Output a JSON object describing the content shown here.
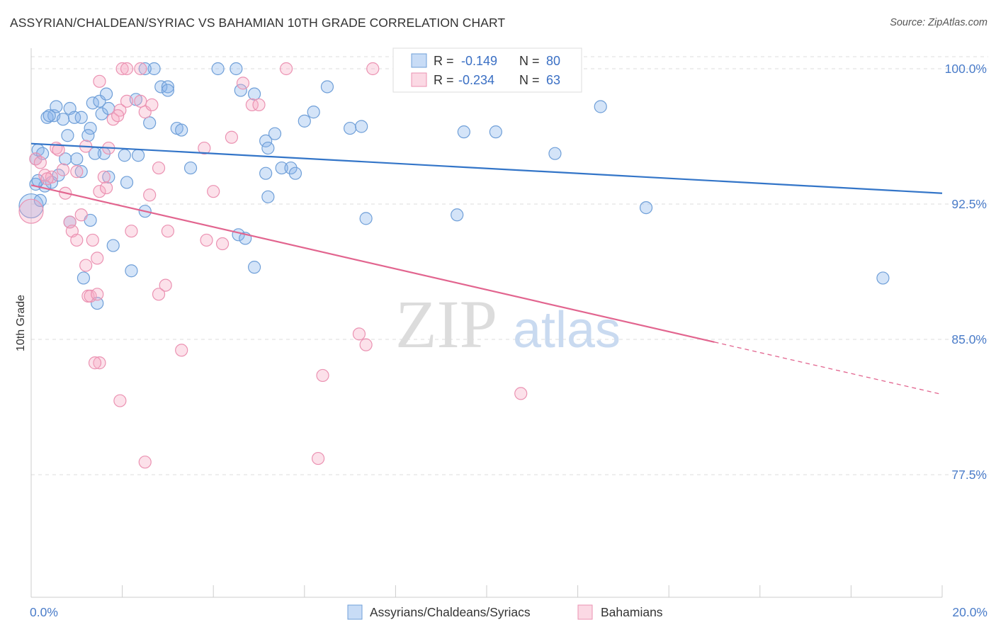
{
  "title": "ASSYRIAN/CHALDEAN/SYRIAC VS BAHAMIAN 10TH GRADE CORRELATION CHART",
  "source": "Source: ZipAtlas.com",
  "watermark": {
    "zip": "ZIP",
    "atlas": "atlas"
  },
  "colors": {
    "blue_fill": "rgba(133,178,236,0.35)",
    "blue_stroke": "#6f9fd8",
    "blue_line": "#3375c8",
    "pink_fill": "rgba(246,170,196,0.35)",
    "pink_stroke": "#eb92b2",
    "pink_line": "#e2658f",
    "tick_label": "#4a7cc9",
    "grid": "#dddddd"
  },
  "legend": {
    "rows": [
      {
        "r_label": "R =",
        "r_value": "-0.149",
        "n_label": "N =",
        "n_value": "80"
      },
      {
        "r_label": "R =",
        "r_value": "-0.234",
        "n_label": "N =",
        "n_value": "63"
      }
    ]
  },
  "bottom_legend": [
    "Assyrians/Chaldeans/Syriacs",
    "Bahamians"
  ],
  "chart_data": {
    "type": "scatter",
    "ylabel": "10th Grade",
    "xlim": [
      0,
      20
    ],
    "ylim": [
      70,
      101.2
    ],
    "x_ticks": [
      {
        "value": 0,
        "label": "0.0%"
      },
      {
        "value": 20,
        "label": "20.0%"
      }
    ],
    "y_ticks": [
      {
        "value": 100,
        "label": "100.0%"
      },
      {
        "value": 92.5,
        "label": "92.5%"
      },
      {
        "value": 85,
        "label": "85.0%"
      },
      {
        "value": 77.5,
        "label": "77.5%"
      }
    ],
    "grid": "horizontal dashed",
    "series": [
      {
        "name": "Assyrians/Chaldeans/Syriacs",
        "color": "blue",
        "trend": {
          "x0": 0,
          "y0": 95.85,
          "x1": 20,
          "y1": 93.1
        },
        "points": [
          [
            0.0,
            92.4
          ],
          [
            0.1,
            93.6
          ],
          [
            0.2,
            92.7
          ],
          [
            0.15,
            95.5
          ],
          [
            0.1,
            95.0
          ],
          [
            0.25,
            95.3
          ],
          [
            0.35,
            97.3
          ],
          [
            0.5,
            97.4
          ],
          [
            0.4,
            97.4
          ],
          [
            0.55,
            97.9
          ],
          [
            0.7,
            97.2
          ],
          [
            0.8,
            96.3
          ],
          [
            0.85,
            97.8
          ],
          [
            0.95,
            97.3
          ],
          [
            1.1,
            97.3
          ],
          [
            1.3,
            96.7
          ],
          [
            1.35,
            98.1
          ],
          [
            1.5,
            98.2
          ],
          [
            1.55,
            97.5
          ],
          [
            1.65,
            98.6
          ],
          [
            1.7,
            97.8
          ],
          [
            1.6,
            95.3
          ],
          [
            1.4,
            95.3
          ],
          [
            1.25,
            96.3
          ],
          [
            1.0,
            95.0
          ],
          [
            0.75,
            95.0
          ],
          [
            0.6,
            94.1
          ],
          [
            0.45,
            93.7
          ],
          [
            0.3,
            93.5
          ],
          [
            0.15,
            93.8
          ],
          [
            1.1,
            94.3
          ],
          [
            1.7,
            94.0
          ],
          [
            2.1,
            93.7
          ],
          [
            2.5,
            92.1
          ],
          [
            2.3,
            98.3
          ],
          [
            2.6,
            97.0
          ],
          [
            2.85,
            99.0
          ],
          [
            3.0,
            99.0
          ],
          [
            3.2,
            96.7
          ],
          [
            3.3,
            96.6
          ],
          [
            3.0,
            98.8
          ],
          [
            2.7,
            100.0
          ],
          [
            2.5,
            100.0
          ],
          [
            4.1,
            100.0
          ],
          [
            4.5,
            100.0
          ],
          [
            4.6,
            98.8
          ],
          [
            4.9,
            98.6
          ],
          [
            5.15,
            96.0
          ],
          [
            5.35,
            96.4
          ],
          [
            5.2,
            95.6
          ],
          [
            5.5,
            94.5
          ],
          [
            5.7,
            94.5
          ],
          [
            5.8,
            94.2
          ],
          [
            5.15,
            94.2
          ],
          [
            4.55,
            90.8
          ],
          [
            4.7,
            90.6
          ],
          [
            4.9,
            89.0
          ],
          [
            5.2,
            92.9
          ],
          [
            6.2,
            97.6
          ],
          [
            6.5,
            99.0
          ],
          [
            6.0,
            97.1
          ],
          [
            7.0,
            96.7
          ],
          [
            7.25,
            96.8
          ],
          [
            9.5,
            96.5
          ],
          [
            10.2,
            96.5
          ],
          [
            9.35,
            91.9
          ],
          [
            7.35,
            91.7
          ],
          [
            11.5,
            95.3
          ],
          [
            12.5,
            97.9
          ],
          [
            13.5,
            92.3
          ],
          [
            18.7,
            88.4
          ],
          [
            1.8,
            90.2
          ],
          [
            2.2,
            88.8
          ],
          [
            1.45,
            87.0
          ],
          [
            1.15,
            88.4
          ],
          [
            1.3,
            91.6
          ],
          [
            0.85,
            91.5
          ],
          [
            2.05,
            95.2
          ],
          [
            2.35,
            95.2
          ],
          [
            3.5,
            94.5
          ]
        ]
      },
      {
        "name": "Bahamians",
        "color": "pink",
        "trend": {
          "x0": 0,
          "y0": 93.55,
          "x1": 15,
          "y1": 84.85,
          "x2": 20,
          "y2": 81.95
        },
        "points": [
          [
            0.0,
            92.1
          ],
          [
            0.1,
            95.0
          ],
          [
            0.2,
            94.8
          ],
          [
            0.3,
            94.1
          ],
          [
            0.45,
            94.0
          ],
          [
            0.55,
            95.6
          ],
          [
            0.7,
            94.4
          ],
          [
            0.75,
            93.1
          ],
          [
            0.85,
            91.5
          ],
          [
            0.9,
            91.0
          ],
          [
            1.0,
            90.5
          ],
          [
            1.1,
            91.9
          ],
          [
            1.2,
            89.1
          ],
          [
            1.35,
            90.5
          ],
          [
            1.45,
            89.5
          ],
          [
            1.5,
            93.2
          ],
          [
            1.6,
            94.0
          ],
          [
            1.7,
            95.6
          ],
          [
            1.8,
            97.2
          ],
          [
            1.95,
            97.7
          ],
          [
            2.1,
            98.2
          ],
          [
            2.0,
            100.0
          ],
          [
            2.1,
            100.0
          ],
          [
            2.4,
            100.0
          ],
          [
            2.4,
            98.2
          ],
          [
            2.5,
            97.6
          ],
          [
            2.65,
            98.0
          ],
          [
            2.8,
            94.5
          ],
          [
            2.95,
            88.0
          ],
          [
            2.8,
            87.5
          ],
          [
            3.0,
            91.0
          ],
          [
            3.3,
            84.4
          ],
          [
            3.8,
            95.6
          ],
          [
            4.0,
            93.2
          ],
          [
            3.85,
            90.5
          ],
          [
            4.2,
            90.3
          ],
          [
            4.4,
            96.2
          ],
          [
            4.65,
            99.2
          ],
          [
            4.85,
            98.0
          ],
          [
            5.0,
            98.0
          ],
          [
            5.6,
            100.0
          ],
          [
            7.5,
            100.0
          ],
          [
            1.25,
            87.4
          ],
          [
            1.3,
            87.4
          ],
          [
            1.45,
            87.5
          ],
          [
            1.5,
            83.7
          ],
          [
            1.4,
            83.7
          ],
          [
            1.95,
            81.6
          ],
          [
            2.5,
            78.2
          ],
          [
            6.3,
            78.4
          ],
          [
            6.4,
            83.0
          ],
          [
            7.2,
            85.3
          ],
          [
            7.35,
            84.7
          ],
          [
            10.75,
            82.0
          ],
          [
            1.0,
            94.3
          ],
          [
            1.65,
            93.4
          ],
          [
            2.2,
            91.0
          ],
          [
            1.2,
            95.7
          ],
          [
            1.5,
            99.3
          ],
          [
            2.6,
            93.0
          ],
          [
            1.9,
            97.4
          ],
          [
            0.35,
            93.9
          ],
          [
            0.6,
            95.5
          ]
        ]
      }
    ]
  }
}
